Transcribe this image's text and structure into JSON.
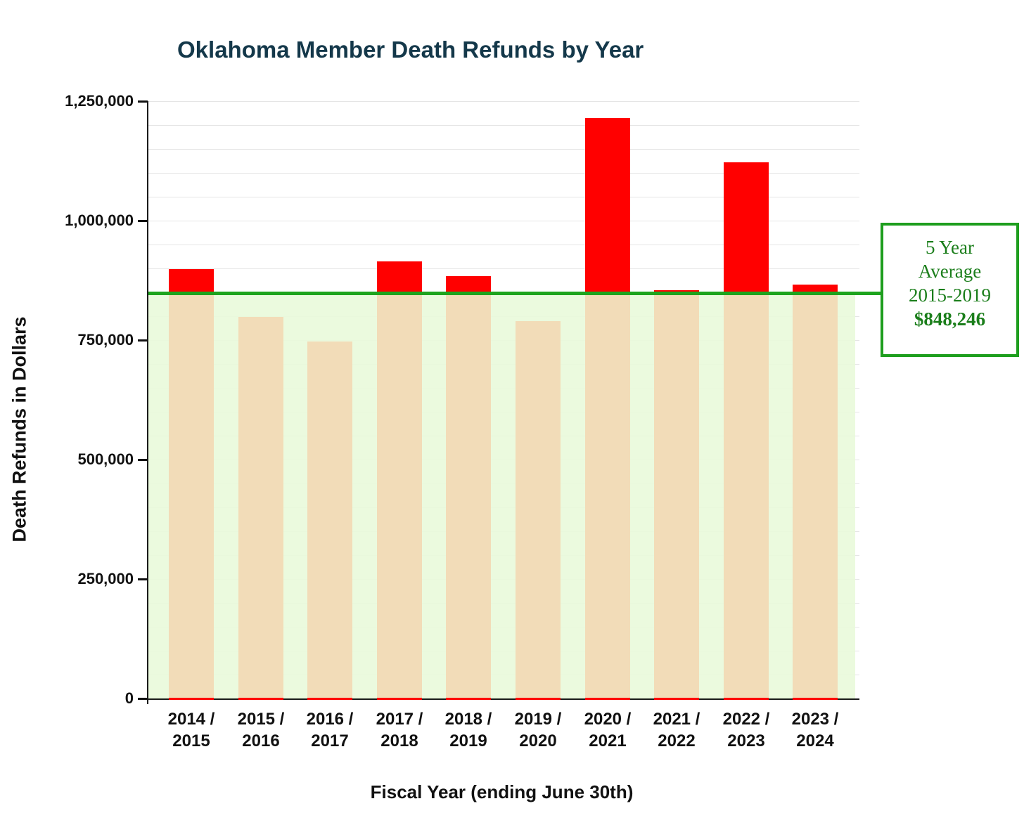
{
  "title": "Oklahoma Member Death Refunds by Year",
  "chart_data": {
    "type": "bar",
    "title": "Oklahoma Member Death Refunds by Year",
    "xlabel": "Fiscal Year (ending June 30th)",
    "ylabel": "Death Refunds in Dollars",
    "ylim": [
      0,
      1250000
    ],
    "ytick_step": 250000,
    "minor_grid_step": 50000,
    "ytick_labels": [
      "0",
      "250,000",
      "500,000",
      "750,000",
      "1,000,000",
      "1,250,000"
    ],
    "grid": true,
    "legend": false,
    "categories": [
      "2014 / 2015",
      "2015 / 2016",
      "2016 / 2017",
      "2017 / 2018",
      "2018 / 2019",
      "2019 / 2020",
      "2020 / 2021",
      "2021 / 2022",
      "2022 / 2023",
      "2023 / 2024"
    ],
    "values": [
      898000,
      798500,
      747000,
      914500,
      883230,
      790000,
      1215000,
      854000,
      1122000,
      866000
    ],
    "average_line": {
      "value": 848246,
      "label_text": "5 Year Average 2015-2019 $848,246"
    },
    "colors": {
      "bar_above_average": "#ff0000",
      "bar_below_average": "#f2dcb8",
      "average_band": "rgba(233,250,218,0.9)",
      "average_line": "#1ea41e",
      "annotation_border": "#1e9e1e",
      "annotation_text": "#1b7e1b",
      "title_text": "#14384a",
      "axis_text": "#111111"
    }
  },
  "annotation_box": {
    "line1": "5 Year",
    "line2": "Average",
    "line3": "2015-2019",
    "line4": "$848,246"
  }
}
